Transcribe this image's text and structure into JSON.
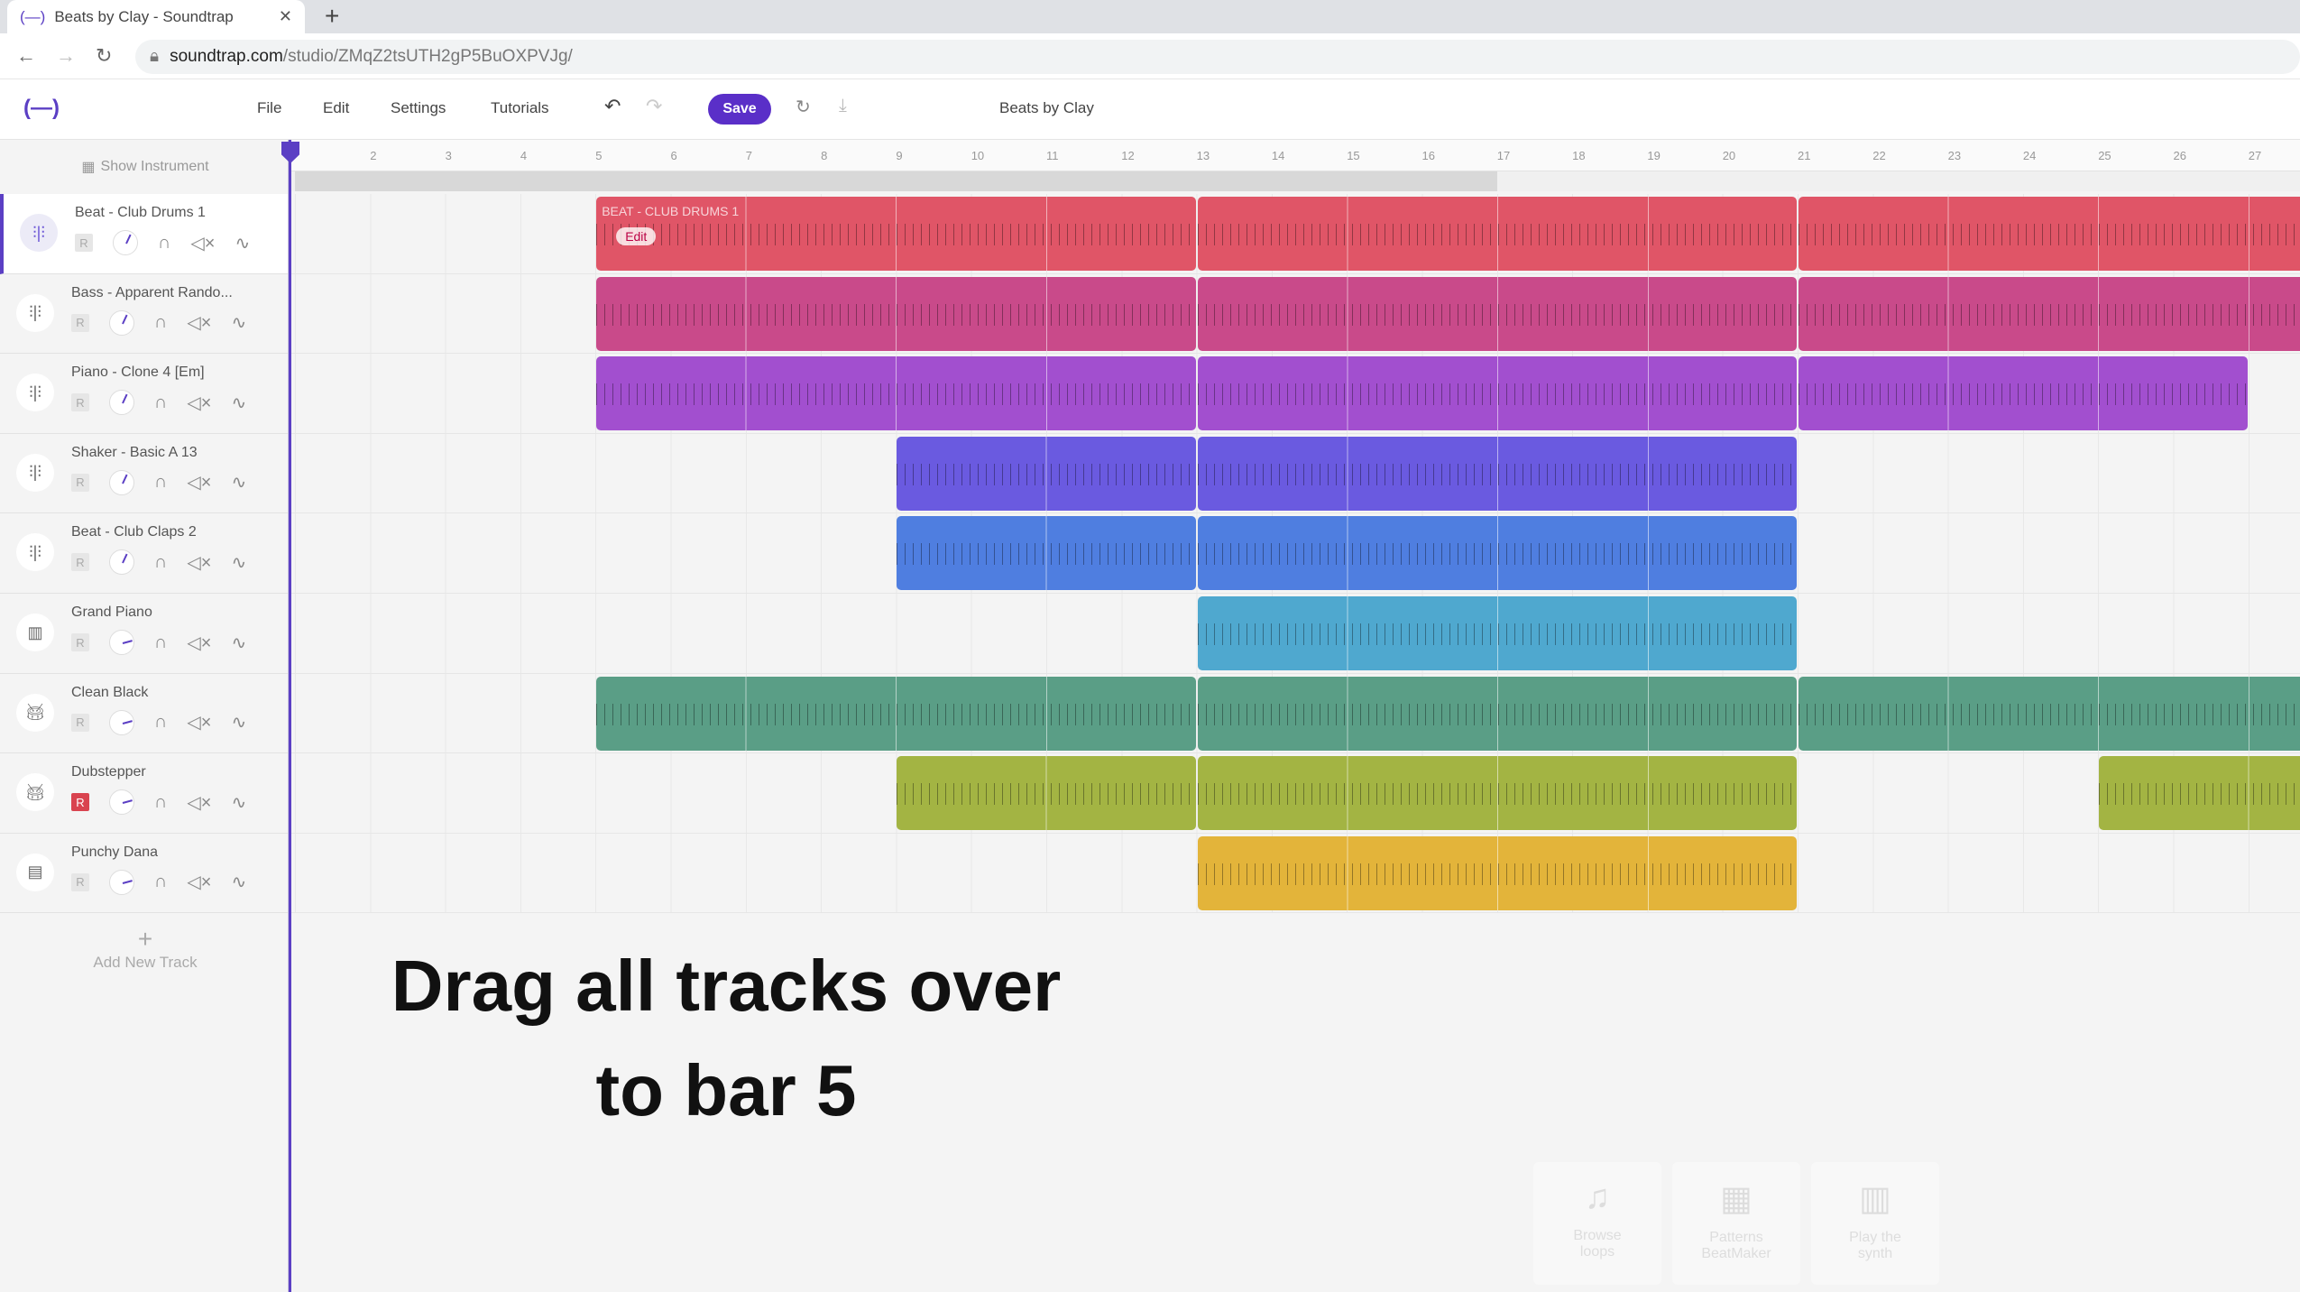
{
  "browser": {
    "tab_title": "Beats by Clay - Soundtrap",
    "url_host": "soundtrap.com",
    "url_path": "/studio/ZMqZ2tsUTH2gP5BuOXPVJg/"
  },
  "menu": {
    "logo": "(—)",
    "file": "File",
    "edit": "Edit",
    "settings": "Settings",
    "tutorials": "Tutorials",
    "save": "Save",
    "project_title": "Beats by Clay"
  },
  "sidebar": {
    "show_instrument": "Show Instrument",
    "add_track": "Add New Track",
    "record_label": "R",
    "tracks": [
      {
        "name": "Beat - Club Drums 1",
        "icon": "waveform-icon",
        "selected": true,
        "armed": false
      },
      {
        "name": "Bass - Apparent Rando...",
        "icon": "waveform-icon",
        "armed": false
      },
      {
        "name": "Piano - Clone 4 [Em]",
        "icon": "waveform-icon",
        "armed": false
      },
      {
        "name": "Shaker - Basic A 13",
        "icon": "waveform-icon",
        "armed": false
      },
      {
        "name": "Beat - Club Claps 2",
        "icon": "waveform-icon",
        "armed": false
      },
      {
        "name": "Grand Piano",
        "icon": "piano-icon",
        "armed": false
      },
      {
        "name": "Clean Black",
        "icon": "drum-icon",
        "armed": false
      },
      {
        "name": "Dubstepper",
        "icon": "drum-icon",
        "armed": true
      },
      {
        "name": "Punchy Dana",
        "icon": "beatmaker-icon",
        "armed": false
      }
    ]
  },
  "ruler": {
    "bars": [
      "2",
      "3",
      "4",
      "5",
      "6",
      "7",
      "8",
      "9",
      "10",
      "11",
      "12",
      "13",
      "14",
      "15",
      "16",
      "17",
      "18",
      "19",
      "20",
      "21",
      "22",
      "23",
      "24",
      "25",
      "26",
      "27"
    ],
    "loop_start_bar": 1,
    "loop_end_bar": 17
  },
  "lanes": [
    {
      "color": "#e05567",
      "label": "BEAT - CLUB DRUMS 1",
      "edit": "Edit",
      "clips": [
        [
          5,
          13
        ],
        [
          13,
          21
        ],
        [
          21,
          29
        ]
      ]
    },
    {
      "color": "#c94a8a",
      "clips": [
        [
          5,
          13
        ],
        [
          13,
          21
        ],
        [
          21,
          29
        ]
      ]
    },
    {
      "color": "#a24fcf",
      "clips": [
        [
          5,
          13
        ],
        [
          13,
          21
        ],
        [
          21,
          27
        ]
      ]
    },
    {
      "color": "#6a5ae0",
      "clips": [
        [
          9,
          13
        ],
        [
          13,
          21
        ]
      ]
    },
    {
      "color": "#4f7ee0",
      "clips": [
        [
          9,
          13
        ],
        [
          13,
          21
        ]
      ]
    },
    {
      "color": "#4fa8cf",
      "clips": [
        [
          13,
          21
        ]
      ]
    },
    {
      "color": "#5a9e86",
      "clips": [
        [
          5,
          13
        ],
        [
          13,
          21
        ],
        [
          21,
          29
        ]
      ]
    },
    {
      "color": "#a3b443",
      "clips": [
        [
          9,
          13
        ],
        [
          13,
          21
        ],
        [
          25,
          29
        ]
      ]
    },
    {
      "color": "#e3b43a",
      "clips": [
        [
          13,
          21
        ]
      ]
    }
  ],
  "overlay": {
    "line1": "Drag all tracks over",
    "line2": "to bar 5"
  },
  "cards": [
    {
      "label1": "Browse",
      "label2": "loops",
      "icon": "music-note-icon"
    },
    {
      "label1": "Patterns",
      "label2": "BeatMaker",
      "icon": "pads-icon"
    },
    {
      "label1": "Play the",
      "label2": "synth",
      "icon": "piano-icon"
    }
  ]
}
